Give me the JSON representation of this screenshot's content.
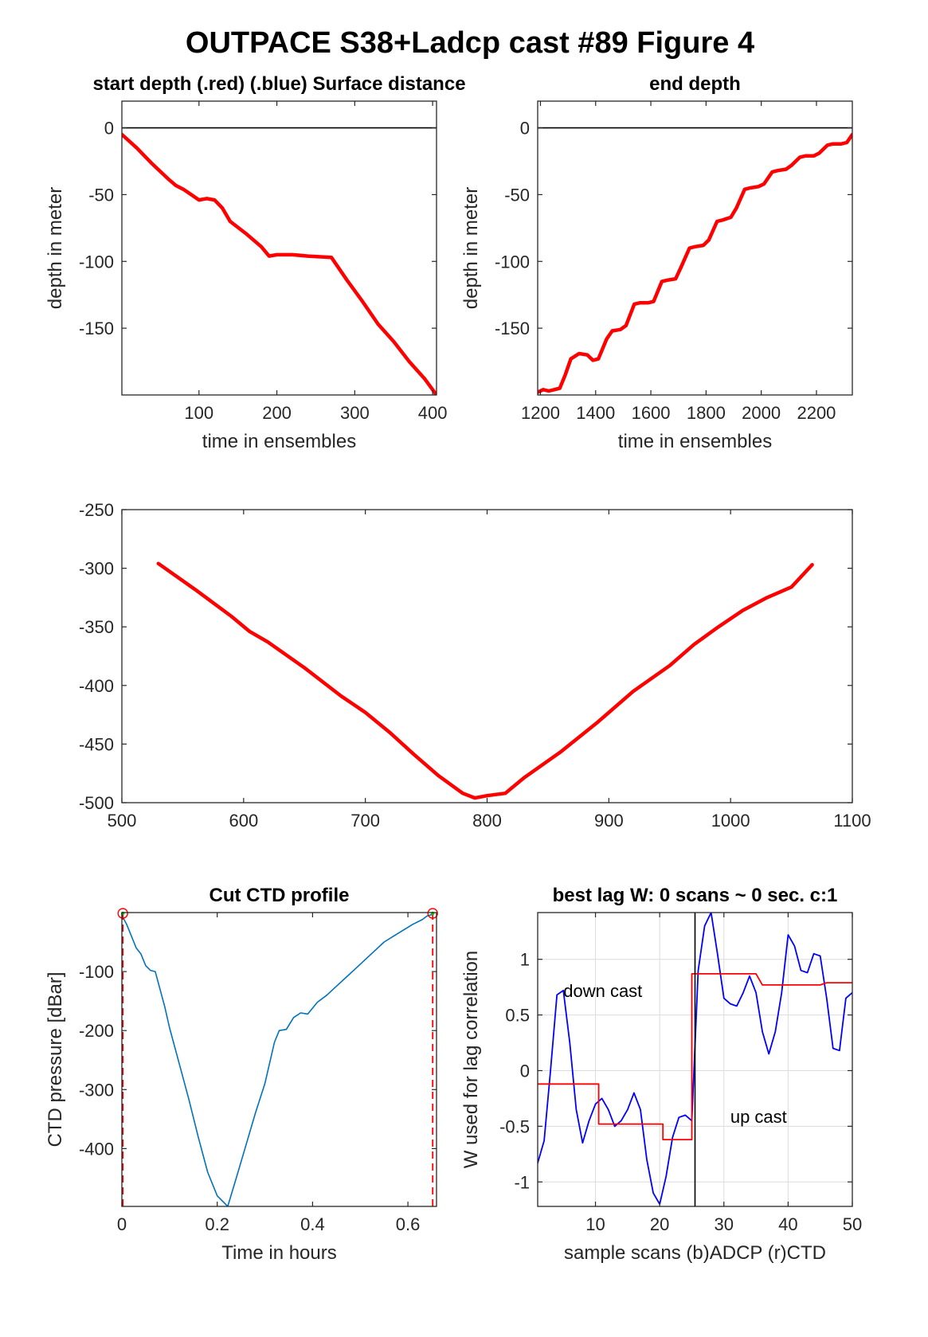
{
  "figure": {
    "title": "OUTPACE S38+Ladcp cast #89   Figure 4"
  },
  "chart_data": [
    {
      "id": "start",
      "type": "line",
      "title": "start depth (.red) (.blue) Surface distance",
      "xlabel": "time in ensembles",
      "ylabel": "depth in meter",
      "xlim": [
        1,
        405
      ],
      "ylim": [
        -200,
        20
      ],
      "xticks": [
        100,
        200,
        300,
        400
      ],
      "yticks": [
        0,
        -50,
        -100,
        -150
      ],
      "grid": false,
      "reference_lines": [
        {
          "y": 0,
          "color": "#000000"
        }
      ],
      "series": [
        {
          "color": "#ff0000",
          "x": [
            1,
            20,
            40,
            60,
            70,
            80,
            90,
            100,
            110,
            120,
            130,
            140,
            160,
            180,
            190,
            200,
            220,
            240,
            270,
            290,
            310,
            330,
            350,
            370,
            390,
            405
          ],
          "y": [
            -5,
            -15,
            -27,
            -38,
            -43,
            -46,
            -50,
            -54,
            -53,
            -54,
            -60,
            -70,
            -79,
            -89,
            -96,
            -95,
            -95,
            -96,
            -97,
            -114,
            -130,
            -147,
            -160,
            -175,
            -188,
            -200
          ]
        }
      ]
    },
    {
      "id": "end",
      "type": "line",
      "title": "end depth",
      "xlabel": "time in ensembles",
      "ylabel": "depth in meter",
      "xlim": [
        1190,
        2330
      ],
      "ylim": [
        -200,
        20
      ],
      "xticks": [
        1200,
        1400,
        1600,
        1800,
        2000,
        2200
      ],
      "yticks": [
        0,
        -50,
        -100,
        -150
      ],
      "grid": false,
      "reference_lines": [
        {
          "y": 0,
          "color": "#000000"
        }
      ],
      "series": [
        {
          "color": "#ff0000",
          "x": [
            1190,
            1210,
            1230,
            1250,
            1270,
            1290,
            1310,
            1340,
            1370,
            1390,
            1410,
            1440,
            1460,
            1490,
            1510,
            1540,
            1560,
            1590,
            1610,
            1640,
            1660,
            1690,
            1710,
            1740,
            1760,
            1790,
            1810,
            1840,
            1860,
            1890,
            1910,
            1940,
            1960,
            1990,
            2010,
            2040,
            2060,
            2090,
            2110,
            2140,
            2160,
            2190,
            2210,
            2240,
            2260,
            2290,
            2310,
            2330
          ],
          "y": [
            -198,
            -196,
            -197,
            -196,
            -195,
            -185,
            -173,
            -169,
            -170,
            -174,
            -173,
            -158,
            -152,
            -151,
            -148,
            -132,
            -131,
            -131,
            -130,
            -115,
            -114,
            -113,
            -104,
            -90,
            -89,
            -88,
            -84,
            -70,
            -69,
            -67,
            -60,
            -46,
            -45,
            -44,
            -42,
            -33,
            -32,
            -31,
            -28,
            -22,
            -21,
            -21,
            -19,
            -13,
            -12,
            -12,
            -11,
            -5
          ]
        }
      ]
    },
    {
      "id": "middle",
      "type": "line",
      "title": "",
      "xlabel": "",
      "ylabel": "",
      "xlim": [
        500,
        1100
      ],
      "ylim": [
        -500,
        -250
      ],
      "xticks": [
        500,
        600,
        700,
        800,
        900,
        1000,
        1100
      ],
      "yticks": [
        -250,
        -300,
        -350,
        -400,
        -450,
        -500
      ],
      "grid": false,
      "series": [
        {
          "color": "#ff0000",
          "x": [
            530,
            560,
            590,
            605,
            620,
            650,
            680,
            700,
            720,
            740,
            760,
            780,
            790,
            800,
            815,
            830,
            860,
            890,
            920,
            950,
            970,
            990,
            1010,
            1030,
            1050,
            1067
          ],
          "y": [
            -296,
            -318,
            -341,
            -354,
            -363,
            -385,
            -409,
            -423,
            -440,
            -459,
            -477,
            -492,
            -496,
            -494,
            -492,
            -479,
            -457,
            -432,
            -405,
            -383,
            -365,
            -350,
            -336,
            -325,
            -316,
            -297
          ]
        }
      ]
    },
    {
      "id": "ctd",
      "type": "line",
      "title": "Cut CTD profile",
      "xlabel": "Time in hours",
      "ylabel": "CTD pressure [dBar]",
      "xlim": [
        0,
        0.66
      ],
      "ylim": [
        -498,
        0
      ],
      "xticks": [
        0,
        0.2,
        0.4,
        0.6
      ],
      "yticks": [
        -100,
        -200,
        -300,
        -400
      ],
      "grid": false,
      "cut_lines": [
        {
          "x": 0.002,
          "color": "#ff0000"
        },
        {
          "x": 0.652,
          "color": "#ff0000"
        }
      ],
      "series": [
        {
          "color": "#0072bd",
          "x": [
            0,
            0.01,
            0.02,
            0.03,
            0.04,
            0.05,
            0.06,
            0.07,
            0.08,
            0.09,
            0.1,
            0.12,
            0.14,
            0.16,
            0.18,
            0.2,
            0.222,
            0.24,
            0.26,
            0.28,
            0.3,
            0.32,
            0.33,
            0.345,
            0.36,
            0.375,
            0.39,
            0.41,
            0.43,
            0.45,
            0.47,
            0.49,
            0.51,
            0.53,
            0.55,
            0.57,
            0.59,
            0.61,
            0.63,
            0.64,
            0.652
          ],
          "y": [
            -5,
            -20,
            -40,
            -60,
            -70,
            -90,
            -98,
            -100,
            -130,
            -160,
            -195,
            -255,
            -315,
            -380,
            -440,
            -480,
            -498,
            -450,
            -395,
            -340,
            -290,
            -220,
            -200,
            -198,
            -178,
            -170,
            -172,
            -152,
            -140,
            -125,
            -110,
            -95,
            -80,
            -65,
            -50,
            -40,
            -30,
            -20,
            -12,
            -6,
            -3
          ]
        }
      ]
    },
    {
      "id": "lag",
      "type": "line",
      "title": "best lag W: 0 scans ~ 0 sec.  c:1",
      "xlabel": "sample scans (b)ADCP (r)CTD",
      "ylabel": "W used for lag correlation",
      "xlim": [
        1,
        50
      ],
      "ylim": [
        -1.22,
        1.42
      ],
      "xticks": [
        10,
        20,
        30,
        40,
        50
      ],
      "yticks": [
        1,
        0.5,
        0,
        -0.5,
        -1
      ],
      "grid": true,
      "divider": {
        "x": 25.5
      },
      "annotations": [
        {
          "text": "down cast",
          "x": 5,
          "y": 0.72
        },
        {
          "text": "up cast",
          "x": 31,
          "y": -0.41
        }
      ],
      "series": [
        {
          "color": "#0000ff",
          "x": [
            1,
            2,
            3,
            4,
            5,
            6,
            7,
            8,
            9,
            10,
            11,
            12,
            13,
            14,
            15,
            16,
            17,
            18,
            19,
            20,
            21,
            22,
            23,
            24,
            25,
            26,
            27,
            28,
            29,
            30,
            31,
            32,
            33,
            34,
            35,
            36,
            37,
            38,
            39,
            40,
            41,
            42,
            43,
            44,
            45,
            46,
            47,
            48,
            49,
            50
          ],
          "y": [
            -0.83,
            -0.63,
            0.0,
            0.68,
            0.72,
            0.25,
            -0.35,
            -0.65,
            -0.45,
            -0.3,
            -0.25,
            -0.35,
            -0.5,
            -0.45,
            -0.35,
            -0.2,
            -0.35,
            -0.8,
            -1.1,
            -1.2,
            -0.95,
            -0.6,
            -0.42,
            -0.4,
            -0.45,
            0.9,
            1.3,
            1.42,
            1.05,
            0.65,
            0.6,
            0.58,
            0.7,
            0.85,
            0.7,
            0.35,
            0.15,
            0.35,
            0.7,
            1.22,
            1.12,
            0.9,
            0.88,
            1.05,
            1.03,
            0.65,
            0.2,
            0.18,
            0.65,
            0.7
          ]
        },
        {
          "color": "#ff0000",
          "x": [
            1,
            10.5,
            10.5,
            20.5,
            20.5,
            25,
            25,
            35,
            36,
            45,
            46,
            50
          ],
          "y": [
            -0.12,
            -0.12,
            -0.48,
            -0.48,
            -0.62,
            -0.62,
            0.87,
            0.87,
            0.77,
            0.77,
            0.79,
            0.79
          ]
        }
      ]
    }
  ]
}
